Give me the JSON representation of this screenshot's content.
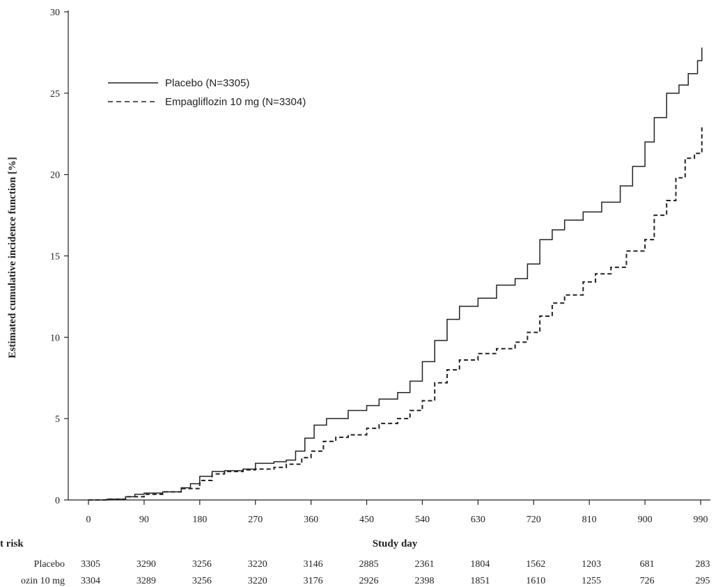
{
  "chart_data": {
    "type": "line",
    "title": "",
    "xlabel": "Study day",
    "ylabel": "Estimated cumulative incidence function [%]",
    "xlim": [
      0,
      990
    ],
    "ylim": [
      0,
      30
    ],
    "x_ticks": [
      0,
      90,
      180,
      270,
      360,
      450,
      540,
      630,
      720,
      810,
      900,
      990
    ],
    "y_ticks": [
      0,
      5,
      10,
      15,
      20,
      25,
      30
    ],
    "grid": false,
    "legend_position": "top-left",
    "series": [
      {
        "name": "Placebo (N=3305)",
        "line_style": "solid",
        "color": "#222222",
        "points": [
          [
            0,
            0
          ],
          [
            30,
            0.05
          ],
          [
            60,
            0.2
          ],
          [
            75,
            0.35
          ],
          [
            90,
            0.42
          ],
          [
            120,
            0.5
          ],
          [
            150,
            0.75
          ],
          [
            165,
            1.0
          ],
          [
            180,
            1.45
          ],
          [
            200,
            1.75
          ],
          [
            220,
            1.8
          ],
          [
            250,
            1.9
          ],
          [
            270,
            2.25
          ],
          [
            300,
            2.35
          ],
          [
            320,
            2.45
          ],
          [
            335,
            3.0
          ],
          [
            350,
            3.8
          ],
          [
            365,
            4.6
          ],
          [
            385,
            5.0
          ],
          [
            420,
            5.5
          ],
          [
            450,
            5.8
          ],
          [
            470,
            6.2
          ],
          [
            500,
            6.6
          ],
          [
            520,
            7.3
          ],
          [
            540,
            8.5
          ],
          [
            560,
            9.8
          ],
          [
            580,
            11.1
          ],
          [
            600,
            11.9
          ],
          [
            630,
            12.4
          ],
          [
            660,
            13.2
          ],
          [
            690,
            13.6
          ],
          [
            710,
            14.5
          ],
          [
            730,
            16.0
          ],
          [
            750,
            16.6
          ],
          [
            770,
            17.2
          ],
          [
            800,
            17.7
          ],
          [
            830,
            18.3
          ],
          [
            860,
            19.3
          ],
          [
            880,
            20.5
          ],
          [
            900,
            22.0
          ],
          [
            915,
            23.5
          ],
          [
            935,
            25.0
          ],
          [
            955,
            25.5
          ],
          [
            970,
            26.2
          ],
          [
            985,
            27.0
          ],
          [
            992,
            27.8
          ]
        ]
      },
      {
        "name": "Empagliflozin 10 mg (N=3304)",
        "line_style": "dashed",
        "color": "#222222",
        "points": [
          [
            0,
            0
          ],
          [
            30,
            0.05
          ],
          [
            60,
            0.2
          ],
          [
            90,
            0.35
          ],
          [
            120,
            0.5
          ],
          [
            150,
            0.7
          ],
          [
            180,
            1.2
          ],
          [
            200,
            1.6
          ],
          [
            220,
            1.75
          ],
          [
            250,
            1.85
          ],
          [
            270,
            1.9
          ],
          [
            300,
            2.0
          ],
          [
            320,
            2.2
          ],
          [
            345,
            2.6
          ],
          [
            360,
            3.0
          ],
          [
            380,
            3.6
          ],
          [
            400,
            3.85
          ],
          [
            420,
            4.0
          ],
          [
            450,
            4.4
          ],
          [
            470,
            4.7
          ],
          [
            500,
            5.0
          ],
          [
            520,
            5.5
          ],
          [
            540,
            6.1
          ],
          [
            560,
            7.2
          ],
          [
            580,
            8.0
          ],
          [
            600,
            8.6
          ],
          [
            630,
            9.0
          ],
          [
            660,
            9.3
          ],
          [
            690,
            9.7
          ],
          [
            710,
            10.3
          ],
          [
            730,
            11.3
          ],
          [
            750,
            12.1
          ],
          [
            770,
            12.6
          ],
          [
            800,
            13.4
          ],
          [
            820,
            13.9
          ],
          [
            845,
            14.3
          ],
          [
            870,
            15.3
          ],
          [
            900,
            16.0
          ],
          [
            915,
            17.5
          ],
          [
            935,
            18.4
          ],
          [
            950,
            19.8
          ],
          [
            965,
            21.0
          ],
          [
            980,
            21.3
          ],
          [
            992,
            22.9
          ]
        ]
      }
    ],
    "risk_table": {
      "header": "t risk",
      "rows": [
        {
          "label": "Placebo",
          "values": [
            3305,
            3290,
            3256,
            3220,
            3146,
            2885,
            2361,
            1804,
            1562,
            1203,
            681,
            283
          ]
        },
        {
          "label": "ozin 10 mg",
          "values": [
            3304,
            3289,
            3256,
            3220,
            3176,
            2926,
            2398,
            1851,
            1610,
            1255,
            726,
            295
          ]
        }
      ]
    }
  }
}
